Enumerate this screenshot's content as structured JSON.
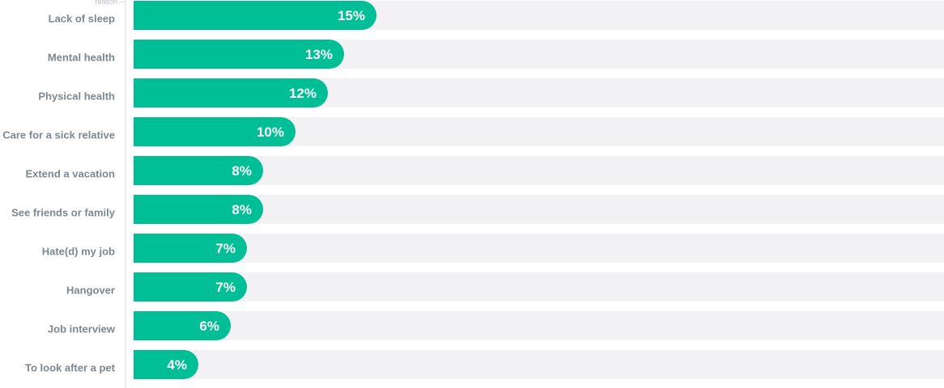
{
  "chart_data": {
    "type": "bar",
    "orientation": "horizontal",
    "axis_title": "reason",
    "categories": [
      "Lack of sleep",
      "Mental health",
      "Physical health",
      "Care for a sick relative",
      "Extend a vacation",
      "See friends or family",
      "Hate(d) my job",
      "Hangover",
      "Job interview",
      "To look after a pet"
    ],
    "values": [
      15,
      13,
      12,
      10,
      8,
      8,
      7,
      7,
      6,
      4
    ],
    "value_labels": [
      "15%",
      "13%",
      "12%",
      "10%",
      "8%",
      "8%",
      "7%",
      "7%",
      "6%",
      "4%"
    ],
    "unit": "%",
    "xlim": [
      0,
      50
    ],
    "colors": {
      "bar": "#00be96",
      "track": "#f2f2f4",
      "axis": "#dcdee2",
      "category_text": "#7d8791",
      "value_text": "#ffffff"
    }
  }
}
